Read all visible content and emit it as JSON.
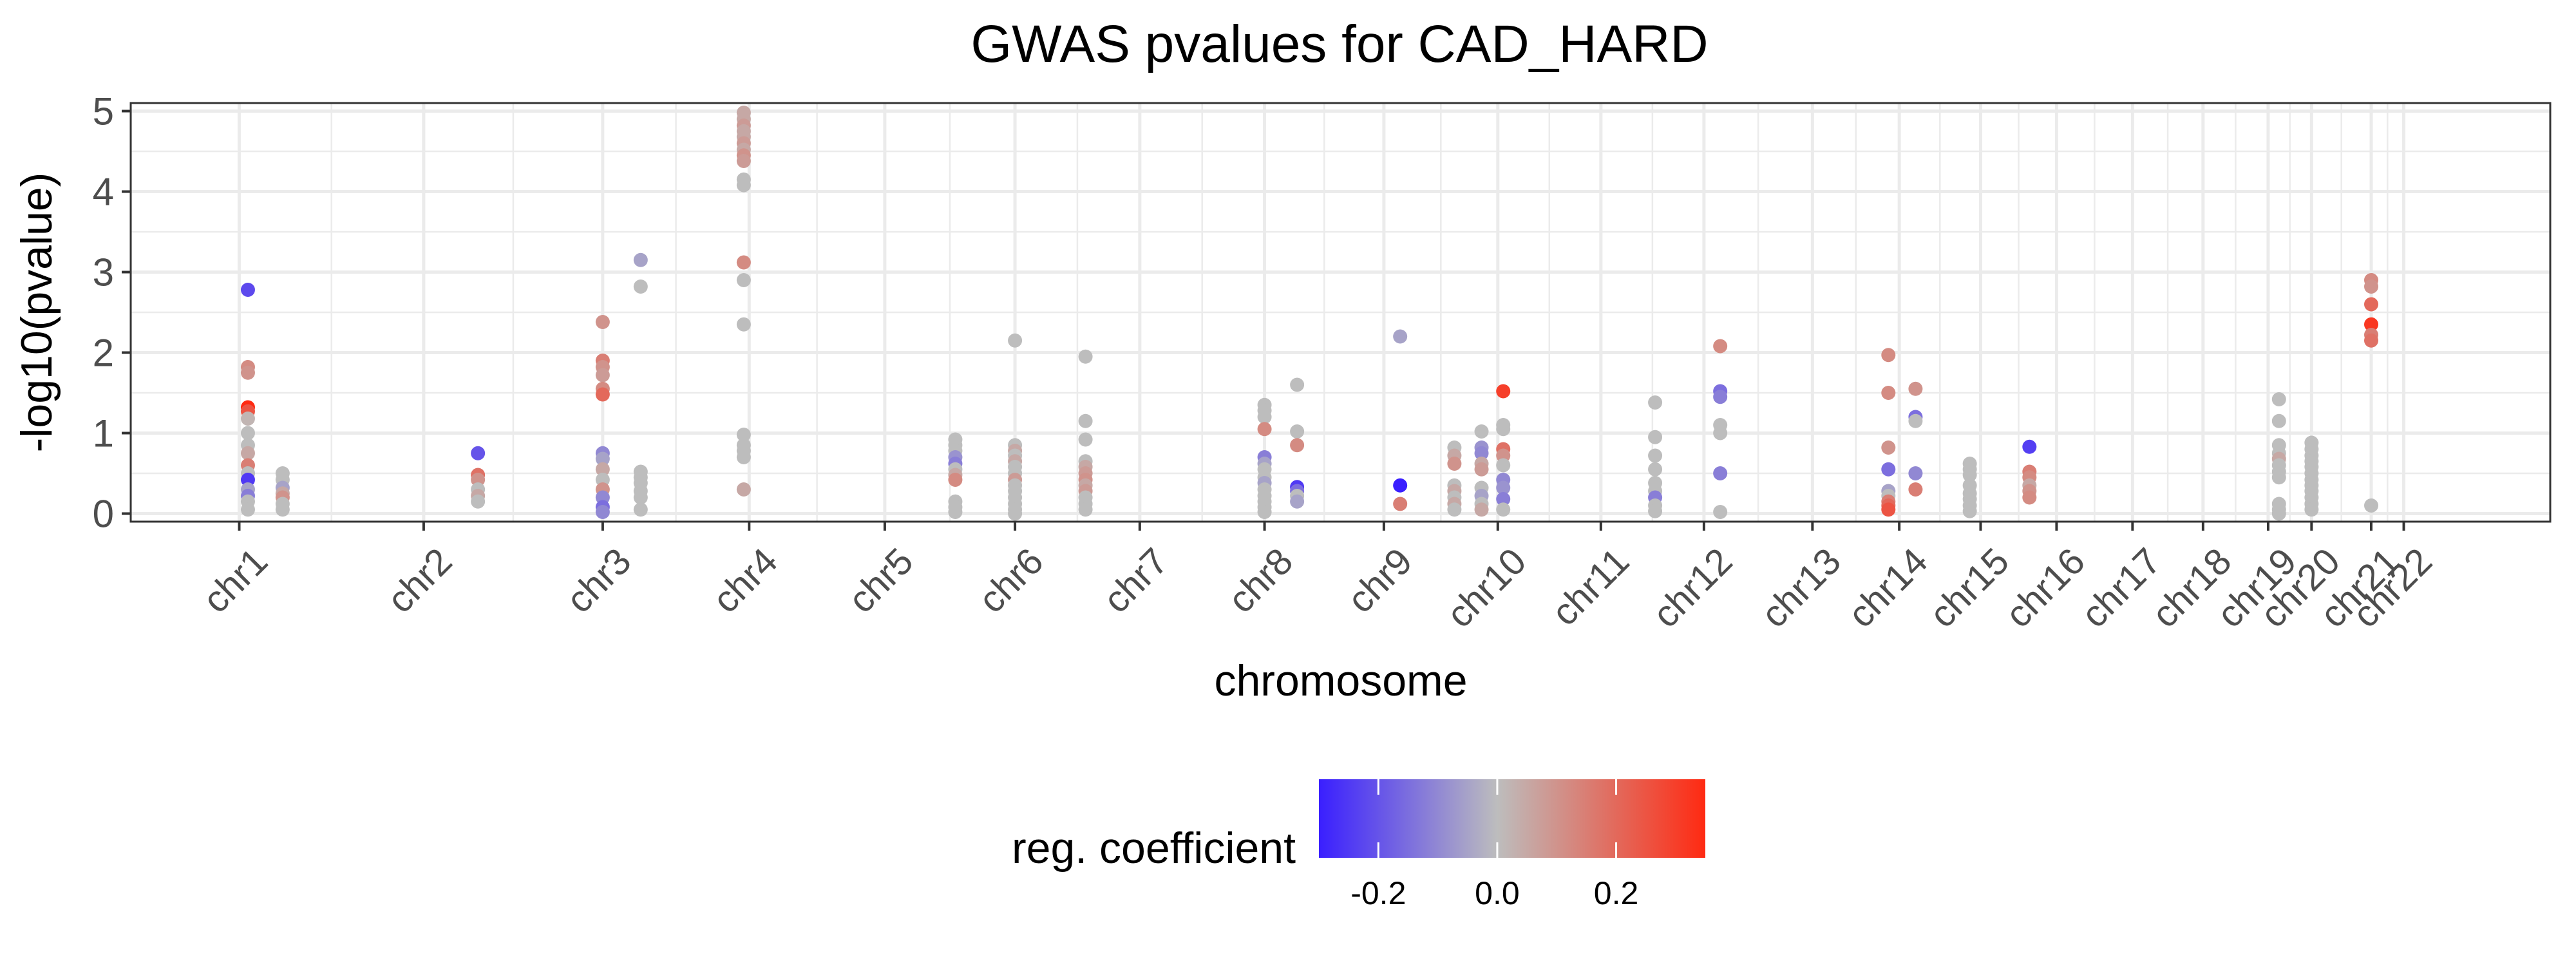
{
  "chart_data": {
    "type": "scatter",
    "title": "GWAS pvalues for CAD_HARD",
    "xlabel": "chromosome",
    "ylabel": "-log10(pvalue)",
    "ylim": [
      -0.1,
      5.1
    ],
    "y_ticks": [
      0,
      1,
      2,
      3,
      4,
      5
    ],
    "grid": true,
    "legend": {
      "title": "reg. coefficient",
      "placement": "bottom",
      "ticks": [
        -0.2,
        0.0,
        0.2
      ],
      "tick_labels": [
        "-0.2",
        "0.0",
        "0.2"
      ],
      "range": [
        -0.3,
        0.35
      ],
      "colors": {
        "low": "#3a1fff",
        "mid": "#bdbdbd",
        "high": "#ff2a12"
      }
    },
    "chromosomes": [
      {
        "name": "chr1",
        "position": 1.0
      },
      {
        "name": "chr2",
        "position": 2.7
      },
      {
        "name": "chr3",
        "position": 4.35
      },
      {
        "name": "chr4",
        "position": 5.7
      },
      {
        "name": "chr5",
        "position": 6.95
      },
      {
        "name": "chr6",
        "position": 8.15
      },
      {
        "name": "chr7",
        "position": 9.3
      },
      {
        "name": "chr8",
        "position": 10.45
      },
      {
        "name": "chr9",
        "position": 11.55
      },
      {
        "name": "chr10",
        "position": 12.6
      },
      {
        "name": "chr11",
        "position": 13.55
      },
      {
        "name": "chr12",
        "position": 14.5
      },
      {
        "name": "chr13",
        "position": 15.5
      },
      {
        "name": "chr14",
        "position": 16.3
      },
      {
        "name": "chr15",
        "position": 17.05
      },
      {
        "name": "chr16",
        "position": 17.75
      },
      {
        "name": "chr17",
        "position": 18.45
      },
      {
        "name": "chr18",
        "position": 19.1
      },
      {
        "name": "chr19",
        "position": 19.7
      },
      {
        "name": "chr20",
        "position": 20.1
      },
      {
        "name": "chr21",
        "position": 20.65
      },
      {
        "name": "chr22",
        "position": 20.95
      }
    ],
    "x_range": [
      0.0,
      22.3
    ],
    "points": [
      {
        "x": 1.08,
        "y": 2.78,
        "c": -0.22
      },
      {
        "x": 1.08,
        "y": 1.82,
        "c": 0.12
      },
      {
        "x": 1.08,
        "y": 1.75,
        "c": 0.1
      },
      {
        "x": 1.08,
        "y": 1.32,
        "c": 0.38
      },
      {
        "x": 1.08,
        "y": 1.27,
        "c": 0.25
      },
      {
        "x": 1.08,
        "y": 1.18,
        "c": 0.02
      },
      {
        "x": 1.08,
        "y": 1.0,
        "c": 0.0
      },
      {
        "x": 1.08,
        "y": 0.85,
        "c": 0.0
      },
      {
        "x": 1.08,
        "y": 0.75,
        "c": 0.05
      },
      {
        "x": 1.08,
        "y": 0.6,
        "c": 0.15
      },
      {
        "x": 1.08,
        "y": 0.5,
        "c": 0.0
      },
      {
        "x": 1.08,
        "y": 0.42,
        "c": -0.25
      },
      {
        "x": 1.08,
        "y": 0.3,
        "c": -0.05
      },
      {
        "x": 1.08,
        "y": 0.22,
        "c": -0.12
      },
      {
        "x": 1.08,
        "y": 0.15,
        "c": 0.0
      },
      {
        "x": 1.08,
        "y": 0.05,
        "c": 0.0
      },
      {
        "x": 1.4,
        "y": 0.5,
        "c": 0.0
      },
      {
        "x": 1.4,
        "y": 0.42,
        "c": 0.0
      },
      {
        "x": 1.4,
        "y": 0.32,
        "c": -0.05
      },
      {
        "x": 1.4,
        "y": 0.25,
        "c": 0.05
      },
      {
        "x": 1.4,
        "y": 0.2,
        "c": 0.1
      },
      {
        "x": 1.4,
        "y": 0.12,
        "c": 0.0
      },
      {
        "x": 1.4,
        "y": 0.05,
        "c": 0.0
      },
      {
        "x": 3.2,
        "y": 0.75,
        "c": -0.2
      },
      {
        "x": 3.2,
        "y": 0.48,
        "c": 0.18
      },
      {
        "x": 3.2,
        "y": 0.42,
        "c": 0.1
      },
      {
        "x": 3.2,
        "y": 0.3,
        "c": 0.0
      },
      {
        "x": 3.2,
        "y": 0.22,
        "c": 0.05
      },
      {
        "x": 3.2,
        "y": 0.15,
        "c": 0.0
      },
      {
        "x": 4.35,
        "y": 2.38,
        "c": 0.1
      },
      {
        "x": 4.35,
        "y": 1.9,
        "c": 0.15
      },
      {
        "x": 4.35,
        "y": 1.82,
        "c": 0.1
      },
      {
        "x": 4.35,
        "y": 1.72,
        "c": 0.08
      },
      {
        "x": 4.35,
        "y": 1.55,
        "c": 0.12
      },
      {
        "x": 4.35,
        "y": 1.48,
        "c": 0.2
      },
      {
        "x": 4.35,
        "y": 0.75,
        "c": -0.1
      },
      {
        "x": 4.35,
        "y": 0.68,
        "c": -0.05
      },
      {
        "x": 4.35,
        "y": 0.55,
        "c": 0.05
      },
      {
        "x": 4.35,
        "y": 0.42,
        "c": 0.0
      },
      {
        "x": 4.35,
        "y": 0.3,
        "c": 0.1
      },
      {
        "x": 4.35,
        "y": 0.2,
        "c": -0.1
      },
      {
        "x": 4.35,
        "y": 0.08,
        "c": -0.15
      },
      {
        "x": 4.35,
        "y": 0.02,
        "c": -0.1
      },
      {
        "x": 4.7,
        "y": 3.15,
        "c": -0.05
      },
      {
        "x": 4.7,
        "y": 2.82,
        "c": 0.0
      },
      {
        "x": 4.7,
        "y": 0.52,
        "c": 0.0
      },
      {
        "x": 4.7,
        "y": 0.45,
        "c": 0.0
      },
      {
        "x": 4.7,
        "y": 0.38,
        "c": 0.0
      },
      {
        "x": 4.7,
        "y": 0.28,
        "c": 0.0
      },
      {
        "x": 4.7,
        "y": 0.2,
        "c": 0.0
      },
      {
        "x": 4.7,
        "y": 0.05,
        "c": 0.0
      },
      {
        "x": 5.65,
        "y": 4.98,
        "c": 0.05
      },
      {
        "x": 5.65,
        "y": 4.9,
        "c": 0.05
      },
      {
        "x": 5.65,
        "y": 4.82,
        "c": 0.08
      },
      {
        "x": 5.65,
        "y": 4.75,
        "c": 0.05
      },
      {
        "x": 5.65,
        "y": 4.68,
        "c": 0.05
      },
      {
        "x": 5.65,
        "y": 4.6,
        "c": 0.08
      },
      {
        "x": 5.65,
        "y": 4.52,
        "c": 0.05
      },
      {
        "x": 5.65,
        "y": 4.45,
        "c": 0.1
      },
      {
        "x": 5.65,
        "y": 4.38,
        "c": 0.08
      },
      {
        "x": 5.65,
        "y": 4.15,
        "c": 0.0
      },
      {
        "x": 5.65,
        "y": 4.08,
        "c": 0.0
      },
      {
        "x": 5.65,
        "y": 3.12,
        "c": 0.12
      },
      {
        "x": 5.65,
        "y": 2.9,
        "c": 0.0
      },
      {
        "x": 5.65,
        "y": 2.35,
        "c": 0.0
      },
      {
        "x": 5.65,
        "y": 0.98,
        "c": 0.0
      },
      {
        "x": 5.65,
        "y": 0.85,
        "c": 0.0
      },
      {
        "x": 5.65,
        "y": 0.78,
        "c": 0.0
      },
      {
        "x": 5.65,
        "y": 0.7,
        "c": 0.0
      },
      {
        "x": 5.65,
        "y": 0.3,
        "c": 0.05
      },
      {
        "x": 7.6,
        "y": 0.92,
        "c": 0.0
      },
      {
        "x": 7.6,
        "y": 0.85,
        "c": 0.0
      },
      {
        "x": 7.6,
        "y": 0.78,
        "c": 0.0
      },
      {
        "x": 7.6,
        "y": 0.7,
        "c": -0.08
      },
      {
        "x": 7.6,
        "y": 0.62,
        "c": -0.12
      },
      {
        "x": 7.6,
        "y": 0.55,
        "c": 0.0
      },
      {
        "x": 7.6,
        "y": 0.48,
        "c": 0.05
      },
      {
        "x": 7.6,
        "y": 0.42,
        "c": 0.12
      },
      {
        "x": 7.6,
        "y": 0.15,
        "c": 0.0
      },
      {
        "x": 7.6,
        "y": 0.08,
        "c": 0.0
      },
      {
        "x": 7.6,
        "y": 0.02,
        "c": 0.0
      },
      {
        "x": 8.15,
        "y": 2.15,
        "c": 0.0
      },
      {
        "x": 8.15,
        "y": 0.85,
        "c": 0.0
      },
      {
        "x": 8.15,
        "y": 0.78,
        "c": 0.05
      },
      {
        "x": 8.15,
        "y": 0.72,
        "c": 0.0
      },
      {
        "x": 8.15,
        "y": 0.65,
        "c": 0.05
      },
      {
        "x": 8.15,
        "y": 0.58,
        "c": 0.0
      },
      {
        "x": 8.15,
        "y": 0.5,
        "c": 0.0
      },
      {
        "x": 8.15,
        "y": 0.42,
        "c": 0.08
      },
      {
        "x": 8.15,
        "y": 0.35,
        "c": 0.0
      },
      {
        "x": 8.15,
        "y": 0.28,
        "c": 0.0
      },
      {
        "x": 8.15,
        "y": 0.2,
        "c": 0.0
      },
      {
        "x": 8.15,
        "y": 0.12,
        "c": 0.0
      },
      {
        "x": 8.15,
        "y": 0.05,
        "c": 0.0
      },
      {
        "x": 8.15,
        "y": 0.0,
        "c": 0.0
      },
      {
        "x": 8.8,
        "y": 1.95,
        "c": 0.0
      },
      {
        "x": 8.8,
        "y": 1.15,
        "c": 0.0
      },
      {
        "x": 8.8,
        "y": 0.92,
        "c": 0.0
      },
      {
        "x": 8.8,
        "y": 0.65,
        "c": 0.0
      },
      {
        "x": 8.8,
        "y": 0.58,
        "c": 0.05
      },
      {
        "x": 8.8,
        "y": 0.5,
        "c": 0.08
      },
      {
        "x": 8.8,
        "y": 0.42,
        "c": 0.1
      },
      {
        "x": 8.8,
        "y": 0.35,
        "c": 0.05
      },
      {
        "x": 8.8,
        "y": 0.28,
        "c": 0.08
      },
      {
        "x": 8.8,
        "y": 0.2,
        "c": 0.0
      },
      {
        "x": 8.8,
        "y": 0.12,
        "c": 0.0
      },
      {
        "x": 8.8,
        "y": 0.05,
        "c": 0.0
      },
      {
        "x": 10.45,
        "y": 1.35,
        "c": 0.0
      },
      {
        "x": 10.45,
        "y": 1.28,
        "c": 0.0
      },
      {
        "x": 10.45,
        "y": 1.2,
        "c": 0.0
      },
      {
        "x": 10.45,
        "y": 1.05,
        "c": 0.12
      },
      {
        "x": 10.45,
        "y": 0.7,
        "c": -0.12
      },
      {
        "x": 10.45,
        "y": 0.62,
        "c": -0.05
      },
      {
        "x": 10.45,
        "y": 0.55,
        "c": 0.0
      },
      {
        "x": 10.45,
        "y": 0.45,
        "c": 0.0
      },
      {
        "x": 10.45,
        "y": 0.38,
        "c": -0.05
      },
      {
        "x": 10.45,
        "y": 0.3,
        "c": 0.0
      },
      {
        "x": 10.45,
        "y": 0.22,
        "c": 0.0
      },
      {
        "x": 10.45,
        "y": 0.15,
        "c": 0.0
      },
      {
        "x": 10.45,
        "y": 0.08,
        "c": 0.0
      },
      {
        "x": 10.45,
        "y": 0.02,
        "c": 0.0
      },
      {
        "x": 10.75,
        "y": 1.6,
        "c": 0.0
      },
      {
        "x": 10.75,
        "y": 1.02,
        "c": 0.0
      },
      {
        "x": 10.75,
        "y": 0.85,
        "c": 0.12
      },
      {
        "x": 10.75,
        "y": 0.33,
        "c": -0.25
      },
      {
        "x": 10.75,
        "y": 0.28,
        "c": -0.15
      },
      {
        "x": 10.75,
        "y": 0.22,
        "c": 0.0
      },
      {
        "x": 10.75,
        "y": 0.15,
        "c": -0.05
      },
      {
        "x": 11.7,
        "y": 2.2,
        "c": -0.05
      },
      {
        "x": 11.7,
        "y": 0.35,
        "c": -0.3
      },
      {
        "x": 11.7,
        "y": 0.12,
        "c": 0.15
      },
      {
        "x": 12.2,
        "y": 0.82,
        "c": 0.0
      },
      {
        "x": 12.2,
        "y": 0.72,
        "c": 0.05
      },
      {
        "x": 12.2,
        "y": 0.62,
        "c": 0.1
      },
      {
        "x": 12.2,
        "y": 0.35,
        "c": 0.0
      },
      {
        "x": 12.2,
        "y": 0.28,
        "c": 0.05
      },
      {
        "x": 12.2,
        "y": 0.2,
        "c": 0.0
      },
      {
        "x": 12.2,
        "y": 0.12,
        "c": 0.05
      },
      {
        "x": 12.2,
        "y": 0.05,
        "c": 0.0
      },
      {
        "x": 12.45,
        "y": 1.02,
        "c": 0.0
      },
      {
        "x": 12.45,
        "y": 0.82,
        "c": -0.08
      },
      {
        "x": 12.45,
        "y": 0.75,
        "c": -0.1
      },
      {
        "x": 12.45,
        "y": 0.62,
        "c": 0.05
      },
      {
        "x": 12.45,
        "y": 0.55,
        "c": 0.08
      },
      {
        "x": 12.45,
        "y": 0.32,
        "c": 0.0
      },
      {
        "x": 12.45,
        "y": 0.22,
        "c": -0.05
      },
      {
        "x": 12.45,
        "y": 0.12,
        "c": 0.0
      },
      {
        "x": 12.45,
        "y": 0.05,
        "c": 0.05
      },
      {
        "x": 12.65,
        "y": 1.52,
        "c": 0.3
      },
      {
        "x": 12.65,
        "y": 1.1,
        "c": 0.0
      },
      {
        "x": 12.65,
        "y": 1.05,
        "c": 0.0
      },
      {
        "x": 12.65,
        "y": 0.8,
        "c": 0.18
      },
      {
        "x": 12.65,
        "y": 0.72,
        "c": 0.1
      },
      {
        "x": 12.65,
        "y": 0.6,
        "c": 0.0
      },
      {
        "x": 12.65,
        "y": 0.42,
        "c": -0.1
      },
      {
        "x": 12.65,
        "y": 0.32,
        "c": -0.08
      },
      {
        "x": 12.65,
        "y": 0.18,
        "c": -0.12
      },
      {
        "x": 12.65,
        "y": 0.05,
        "c": 0.0
      },
      {
        "x": 14.05,
        "y": 1.38,
        "c": 0.0
      },
      {
        "x": 14.05,
        "y": 0.95,
        "c": 0.0
      },
      {
        "x": 14.05,
        "y": 0.72,
        "c": 0.0
      },
      {
        "x": 14.05,
        "y": 0.55,
        "c": 0.0
      },
      {
        "x": 14.05,
        "y": 0.38,
        "c": 0.0
      },
      {
        "x": 14.05,
        "y": 0.28,
        "c": 0.0
      },
      {
        "x": 14.05,
        "y": 0.2,
        "c": -0.12
      },
      {
        "x": 14.05,
        "y": 0.1,
        "c": 0.0
      },
      {
        "x": 14.05,
        "y": 0.03,
        "c": 0.0
      },
      {
        "x": 14.65,
        "y": 2.08,
        "c": 0.12
      },
      {
        "x": 14.65,
        "y": 1.52,
        "c": -0.15
      },
      {
        "x": 14.65,
        "y": 1.45,
        "c": -0.12
      },
      {
        "x": 14.65,
        "y": 1.1,
        "c": 0.0
      },
      {
        "x": 14.65,
        "y": 1.0,
        "c": 0.0
      },
      {
        "x": 14.65,
        "y": 0.5,
        "c": -0.12
      },
      {
        "x": 14.65,
        "y": 0.02,
        "c": 0.0
      },
      {
        "x": 16.2,
        "y": 1.97,
        "c": 0.12
      },
      {
        "x": 16.2,
        "y": 1.5,
        "c": 0.12
      },
      {
        "x": 16.2,
        "y": 0.82,
        "c": 0.1
      },
      {
        "x": 16.2,
        "y": 0.55,
        "c": -0.15
      },
      {
        "x": 16.2,
        "y": 0.28,
        "c": -0.05
      },
      {
        "x": 16.2,
        "y": 0.22,
        "c": 0.0
      },
      {
        "x": 16.2,
        "y": 0.15,
        "c": 0.15
      },
      {
        "x": 16.2,
        "y": 0.1,
        "c": 0.2
      },
      {
        "x": 16.2,
        "y": 0.05,
        "c": 0.25
      },
      {
        "x": 16.45,
        "y": 1.55,
        "c": 0.1
      },
      {
        "x": 16.45,
        "y": 1.2,
        "c": -0.15
      },
      {
        "x": 16.45,
        "y": 1.15,
        "c": 0.0
      },
      {
        "x": 16.45,
        "y": 0.5,
        "c": -0.1
      },
      {
        "x": 16.45,
        "y": 0.3,
        "c": 0.15
      },
      {
        "x": 16.95,
        "y": 0.62,
        "c": 0.0
      },
      {
        "x": 16.95,
        "y": 0.55,
        "c": 0.0
      },
      {
        "x": 16.95,
        "y": 0.48,
        "c": 0.0
      },
      {
        "x": 16.95,
        "y": 0.35,
        "c": 0.0
      },
      {
        "x": 16.95,
        "y": 0.25,
        "c": 0.0
      },
      {
        "x": 16.95,
        "y": 0.18,
        "c": 0.0
      },
      {
        "x": 16.95,
        "y": 0.1,
        "c": 0.0
      },
      {
        "x": 16.95,
        "y": 0.03,
        "c": 0.0
      },
      {
        "x": 17.5,
        "y": 0.83,
        "c": -0.24
      },
      {
        "x": 17.5,
        "y": 0.52,
        "c": 0.15
      },
      {
        "x": 17.5,
        "y": 0.45,
        "c": 0.12
      },
      {
        "x": 17.5,
        "y": 0.35,
        "c": 0.05
      },
      {
        "x": 17.5,
        "y": 0.28,
        "c": 0.1
      },
      {
        "x": 17.5,
        "y": 0.2,
        "c": 0.12
      },
      {
        "x": 19.8,
        "y": 1.42,
        "c": 0.0
      },
      {
        "x": 19.8,
        "y": 1.15,
        "c": 0.0
      },
      {
        "x": 19.8,
        "y": 0.85,
        "c": 0.0
      },
      {
        "x": 19.8,
        "y": 0.75,
        "c": 0.0
      },
      {
        "x": 19.8,
        "y": 0.68,
        "c": 0.05
      },
      {
        "x": 19.8,
        "y": 0.6,
        "c": 0.0
      },
      {
        "x": 19.8,
        "y": 0.52,
        "c": 0.0
      },
      {
        "x": 19.8,
        "y": 0.45,
        "c": 0.0
      },
      {
        "x": 19.8,
        "y": 0.12,
        "c": 0.0
      },
      {
        "x": 19.8,
        "y": 0.05,
        "c": 0.0
      },
      {
        "x": 19.8,
        "y": 0.0,
        "c": 0.0
      },
      {
        "x": 20.1,
        "y": 0.88,
        "c": 0.0
      },
      {
        "x": 20.1,
        "y": 0.8,
        "c": 0.0
      },
      {
        "x": 20.1,
        "y": 0.72,
        "c": 0.0
      },
      {
        "x": 20.1,
        "y": 0.65,
        "c": 0.0
      },
      {
        "x": 20.1,
        "y": 0.58,
        "c": 0.0
      },
      {
        "x": 20.1,
        "y": 0.5,
        "c": 0.0
      },
      {
        "x": 20.1,
        "y": 0.42,
        "c": 0.0
      },
      {
        "x": 20.1,
        "y": 0.35,
        "c": 0.0
      },
      {
        "x": 20.1,
        "y": 0.28,
        "c": 0.0
      },
      {
        "x": 20.1,
        "y": 0.2,
        "c": 0.0
      },
      {
        "x": 20.1,
        "y": 0.12,
        "c": 0.0
      },
      {
        "x": 20.1,
        "y": 0.05,
        "c": 0.0
      },
      {
        "x": 20.65,
        "y": 2.9,
        "c": 0.12
      },
      {
        "x": 20.65,
        "y": 2.82,
        "c": 0.1
      },
      {
        "x": 20.65,
        "y": 2.6,
        "c": 0.2
      },
      {
        "x": 20.65,
        "y": 2.35,
        "c": 0.32
      },
      {
        "x": 20.65,
        "y": 2.22,
        "c": 0.15
      },
      {
        "x": 20.65,
        "y": 2.15,
        "c": 0.18
      },
      {
        "x": 20.65,
        "y": 0.1,
        "c": 0.0
      }
    ]
  }
}
